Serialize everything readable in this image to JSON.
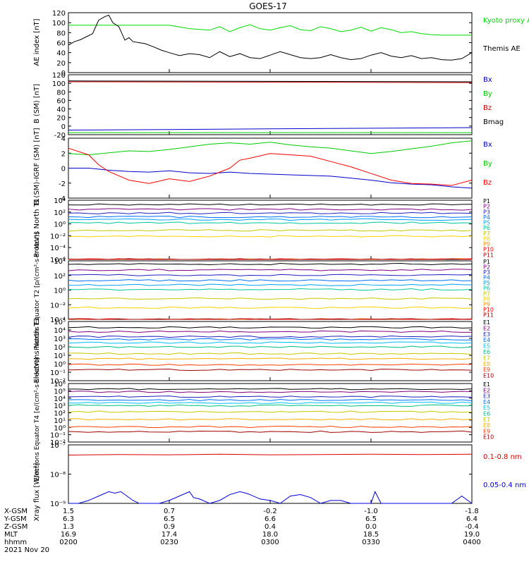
{
  "title": "GOES-17",
  "footer": {
    "rows": [
      {
        "label": "X-GSM",
        "values": [
          "1.5",
          "0.7",
          "-0.2",
          "-1.0",
          "-1.8"
        ]
      },
      {
        "label": "Y-GSM",
        "values": [
          "6.3",
          "6.5",
          "6.6",
          "6.5",
          "6.4"
        ]
      },
      {
        "label": "Z-GSM",
        "values": [
          "1.3",
          "0.9",
          "0.4",
          "0.0",
          "-0.4"
        ]
      },
      {
        "label": "MLT",
        "values": [
          "16.9",
          "17.4",
          "18.0",
          "18.5",
          "19.0"
        ]
      },
      {
        "label": "hhmm",
        "values": [
          "0200",
          "0230",
          "0300",
          "0330",
          "0400"
        ]
      }
    ],
    "date": "2021 Nov 20"
  },
  "chart_data": [
    {
      "type": "line",
      "ylabel": "AE index [nT]",
      "ylim": [
        0,
        120
      ],
      "yticks": [
        "0",
        "20",
        "40",
        "60",
        "80",
        "100",
        "120"
      ],
      "series": [
        {
          "name": "Kyoto proxy AE",
          "color": "#00dd00",
          "x": [
            0,
            0.5,
            0.6,
            0.7,
            0.75,
            0.8,
            0.85,
            0.9,
            0.95,
            1.0,
            1.05,
            1.1,
            1.15,
            1.2,
            1.25,
            1.3,
            1.35,
            1.4,
            1.45,
            1.5,
            1.55,
            1.6,
            1.65,
            1.7,
            1.75,
            1.8,
            1.85,
            1.9,
            1.95,
            2.0
          ],
          "y": [
            95,
            95,
            88,
            85,
            92,
            82,
            90,
            96,
            88,
            85,
            90,
            94,
            86,
            84,
            92,
            88,
            82,
            85,
            91,
            83,
            90,
            86,
            80,
            82,
            78,
            76,
            75,
            75,
            75,
            75
          ]
        },
        {
          "name": "Themis AE",
          "color": "#000000",
          "x": [
            0,
            0.03,
            0.06,
            0.09,
            0.12,
            0.15,
            0.18,
            0.2,
            0.22,
            0.25,
            0.28,
            0.3,
            0.32,
            0.35,
            0.38,
            0.42,
            0.46,
            0.5,
            0.55,
            0.6,
            0.65,
            0.7,
            0.75,
            0.8,
            0.85,
            0.9,
            0.95,
            1.0,
            1.05,
            1.1,
            1.15,
            1.2,
            1.25,
            1.3,
            1.35,
            1.4,
            1.45,
            1.5,
            1.55,
            1.6,
            1.65,
            1.7,
            1.75,
            1.8,
            1.85,
            1.9,
            1.95,
            2.0
          ],
          "y": [
            55,
            62,
            66,
            72,
            78,
            105,
            112,
            115,
            100,
            92,
            65,
            70,
            62,
            60,
            58,
            52,
            45,
            40,
            34,
            38,
            36,
            30,
            42,
            32,
            38,
            30,
            28,
            35,
            42,
            36,
            30,
            28,
            30,
            36,
            30,
            26,
            28,
            35,
            40,
            33,
            30,
            34,
            28,
            30,
            26,
            25,
            28,
            40
          ]
        }
      ]
    },
    {
      "type": "line",
      "ylabel": "B (SM) [nT]",
      "ylim": [
        -25,
        120
      ],
      "yticks": [
        "-20",
        "0",
        "20",
        "40",
        "60",
        "80",
        "100",
        "120"
      ],
      "series": [
        {
          "name": "Bx",
          "color": "#0000cc",
          "x": [
            0,
            1,
            2
          ],
          "y": [
            -14,
            -11,
            -8
          ]
        },
        {
          "name": "By",
          "color": "#00cc00",
          "x": [
            0,
            1,
            2
          ],
          "y": [
            -20,
            -20,
            -20
          ]
        },
        {
          "name": "Bz",
          "color": "#cc0000",
          "x": [
            0,
            1,
            2
          ],
          "y": [
            103,
            102,
            101
          ]
        },
        {
          "name": "Bmag",
          "color": "#000000",
          "x": [
            0,
            1,
            2
          ],
          "y": [
            105,
            104,
            103
          ]
        }
      ]
    },
    {
      "type": "line",
      "ylabel": "B (SM)-IGRF (SM) [nT]",
      "ylim": [
        -4.5,
        4.5
      ],
      "yticks": [
        "-4",
        "-2",
        "0",
        "2",
        "4"
      ],
      "series": [
        {
          "name": "Bx",
          "color": "#0000cc",
          "x": [
            0,
            0.1,
            0.2,
            0.3,
            0.4,
            0.5,
            0.6,
            0.7,
            0.8,
            0.9,
            1.0,
            1.1,
            1.2,
            1.3,
            1.4,
            1.5,
            1.6,
            1.7,
            1.8,
            1.9,
            2.0
          ],
          "y": [
            0,
            0,
            -0.3,
            -0.5,
            -0.6,
            -0.4,
            -0.7,
            -0.8,
            -0.6,
            -0.8,
            -0.9,
            -1.0,
            -1.1,
            -1.2,
            -1.5,
            -1.8,
            -2.2,
            -2.4,
            -2.5,
            -2.8,
            -3.0
          ]
        },
        {
          "name": "By",
          "color": "#00cc00",
          "x": [
            0,
            0.1,
            0.2,
            0.3,
            0.4,
            0.5,
            0.6,
            0.7,
            0.8,
            0.9,
            1.0,
            1.1,
            1.2,
            1.3,
            1.4,
            1.5,
            1.6,
            1.7,
            1.8,
            1.9,
            2.0
          ],
          "y": [
            2.2,
            2.0,
            2.3,
            2.6,
            2.5,
            2.8,
            3.2,
            3.6,
            3.8,
            3.6,
            3.9,
            3.5,
            3.2,
            3.0,
            2.6,
            2.2,
            2.5,
            2.9,
            3.3,
            3.8,
            4.1
          ]
        },
        {
          "name": "Bz",
          "color": "#ff0000",
          "x": [
            0,
            0.1,
            0.15,
            0.2,
            0.3,
            0.4,
            0.5,
            0.6,
            0.7,
            0.8,
            0.85,
            0.9,
            1.0,
            1.1,
            1.2,
            1.3,
            1.4,
            1.5,
            1.6,
            1.7,
            1.8,
            1.9,
            2.0
          ],
          "y": [
            3.0,
            2.0,
            0.5,
            -0.5,
            -1.8,
            -2.3,
            -1.6,
            -2.0,
            -1.2,
            0,
            1.2,
            1.5,
            2.2,
            2.0,
            1.8,
            1.0,
            0.2,
            -0.8,
            -1.8,
            -2.3,
            -2.4,
            -2.6,
            -1.8
          ]
        }
      ]
    },
    {
      "type": "line",
      "ylabel": "Protons North T1",
      "yscale": "log",
      "ylim_exp": [
        -7,
        4
      ],
      "yticks": [
        "10⁴",
        "10²",
        "10⁰",
        "10⁻²",
        "10⁻⁴",
        "10⁻⁶"
      ],
      "series": [
        {
          "name": "P1",
          "color": "#000000",
          "y_exp": 3.2
        },
        {
          "name": "P2",
          "color": "#800080",
          "y_exp": 2.3
        },
        {
          "name": "P3",
          "color": "#2020c0",
          "y_exp": 1.6
        },
        {
          "name": "P4",
          "color": "#0070ff",
          "y_exp": 0.9
        },
        {
          "name": "P5",
          "color": "#00a0ff",
          "y_exp": 0.4
        },
        {
          "name": "P6",
          "color": "#00c8a0",
          "y_exp": -0.2
        },
        {
          "name": "P7",
          "color": "#c8c800",
          "y_exp": -1.6
        },
        {
          "name": "P8",
          "color": "#ffd000",
          "y_exp": -2.7
        },
        {
          "name": "P9",
          "color": "#ff9000",
          "y_exp": -7
        },
        {
          "name": "P10",
          "color": "#ff0000",
          "y_exp": -7
        },
        {
          "name": "P11",
          "color": "#a00000",
          "y_exp": -7
        }
      ]
    },
    {
      "type": "line",
      "ylabel": "Protons Equator T2 [p/(cm²-s-sr-keV)]",
      "yscale": "log",
      "ylim_exp": [
        -5,
        4
      ],
      "yticks": [
        "10⁴",
        "10²",
        "10⁰",
        "10⁻²",
        "10⁻⁴"
      ],
      "series": [
        {
          "name": "P1",
          "color": "#000000",
          "y_exp": 3.5
        },
        {
          "name": "P2",
          "color": "#800080",
          "y_exp": 2.6
        },
        {
          "name": "P3",
          "color": "#2020c0",
          "y_exp": 1.8
        },
        {
          "name": "P4",
          "color": "#0070ff",
          "y_exp": 1.0
        },
        {
          "name": "P5",
          "color": "#00a0ff",
          "y_exp": 0.3
        },
        {
          "name": "P6",
          "color": "#00c8a0",
          "y_exp": -0.4
        },
        {
          "name": "P7",
          "color": "#c8c800",
          "y_exp": -1.8
        },
        {
          "name": "P8",
          "color": "#ffd000",
          "y_exp": -3.2
        },
        {
          "name": "P9",
          "color": "#ff9000",
          "y_exp": -5
        },
        {
          "name": "P10",
          "color": "#ff0000",
          "y_exp": -5
        },
        {
          "name": "P11",
          "color": "#a00000",
          "y_exp": -5
        }
      ]
    },
    {
      "type": "line",
      "ylabel": "Electrons North T3",
      "yscale": "log",
      "ylim_exp": [
        -2,
        5
      ],
      "yticks": [
        "10⁵",
        "10⁴",
        "10³",
        "10²",
        "10¹",
        "10⁰",
        "10⁻¹",
        "10⁻²"
      ],
      "series": [
        {
          "name": "E1",
          "color": "#000000",
          "y_exp": 4.3
        },
        {
          "name": "E2",
          "color": "#800080",
          "y_exp": 3.8
        },
        {
          "name": "E3",
          "color": "#2020c0",
          "y_exp": 3.2
        },
        {
          "name": "E4",
          "color": "#0070ff",
          "y_exp": 2.9
        },
        {
          "name": "E5",
          "color": "#00c0ff",
          "y_exp": 2.5
        },
        {
          "name": "E6",
          "color": "#00c080",
          "y_exp": 2.0
        },
        {
          "name": "E7",
          "color": "#c8c800",
          "y_exp": 1.2
        },
        {
          "name": "E8",
          "color": "#ffb000",
          "y_exp": 0.6
        },
        {
          "name": "E9",
          "color": "#ff4000",
          "y_exp": -0.1
        },
        {
          "name": "E10",
          "color": "#a00000",
          "y_exp": -0.7
        }
      ]
    },
    {
      "type": "line",
      "ylabel": "Electrons Equator T4 [e/(cm²-s-sr-keV)]",
      "yscale": "log",
      "ylim_exp": [
        -2.5,
        6
      ],
      "yticks": [
        "10⁶",
        "10⁵",
        "10⁴",
        "10³",
        "10²",
        "10¹",
        "10⁰",
        "10⁻¹",
        "10⁻²"
      ],
      "series": [
        {
          "name": "E1",
          "color": "#000000",
          "y_exp": 5.2
        },
        {
          "name": "E2",
          "color": "#800080",
          "y_exp": 4.8
        },
        {
          "name": "E3",
          "color": "#2020c0",
          "y_exp": 4.1
        },
        {
          "name": "E4",
          "color": "#0070ff",
          "y_exp": 3.6
        },
        {
          "name": "E5",
          "color": "#00c0ff",
          "y_exp": 3.2
        },
        {
          "name": "E6",
          "color": "#00c080",
          "y_exp": 2.8
        },
        {
          "name": "E7",
          "color": "#c8c800",
          "y_exp": 1.9
        },
        {
          "name": "E8",
          "color": "#ffb000",
          "y_exp": 0.8
        },
        {
          "name": "E9",
          "color": "#ff4000",
          "y_exp": -0.3
        },
        {
          "name": "E10",
          "color": "#a00000",
          "y_exp": -1.0
        }
      ]
    },
    {
      "type": "line",
      "ylabel": "Xray flux [W/m²]",
      "yscale": "log",
      "ylim_exp": [
        -9,
        -7
      ],
      "yticks": [
        "10⁻⁷",
        "10⁻⁸",
        "10⁻⁹"
      ],
      "series": [
        {
          "name": "0.1-0.8 nm",
          "color": "#dd0000",
          "x": [
            0,
            0.25,
            0.5,
            0.75,
            1.0,
            1.25,
            1.5,
            1.75,
            2.0
          ],
          "y_exp": [
            -7.35,
            -7.33,
            -7.34,
            -7.32,
            -7.34,
            -7.33,
            -7.32,
            -7.33,
            -7.32
          ]
        },
        {
          "name": "0.05-0.4 nm",
          "color": "#0000dd",
          "x": [
            0,
            0.05,
            0.1,
            0.15,
            0.2,
            0.23,
            0.26,
            0.29,
            0.32,
            0.35,
            0.4,
            0.45,
            0.5,
            0.55,
            0.6,
            0.62,
            0.65,
            0.7,
            0.75,
            0.8,
            0.85,
            0.88,
            0.9,
            0.95,
            1.0,
            1.05,
            1.1,
            1.15,
            1.2,
            1.25,
            1.3,
            1.35,
            1.4,
            1.45,
            1.5,
            1.52,
            1.55,
            1.6,
            1.7,
            1.8,
            1.9,
            1.95,
            2.0
          ],
          "y_exp": [
            -9,
            -9,
            -8.9,
            -8.75,
            -8.6,
            -8.65,
            -8.6,
            -8.75,
            -8.9,
            -9,
            -9,
            -9,
            -8.9,
            -8.75,
            -8.6,
            -8.8,
            -8.85,
            -9,
            -8.9,
            -8.7,
            -8.6,
            -8.65,
            -8.7,
            -8.85,
            -8.9,
            -9,
            -8.75,
            -8.7,
            -8.8,
            -9,
            -8.9,
            -8.9,
            -9,
            -9,
            -9,
            -8.6,
            -9,
            -9,
            -9,
            -9,
            -9,
            -8.75,
            -9
          ]
        }
      ]
    }
  ]
}
